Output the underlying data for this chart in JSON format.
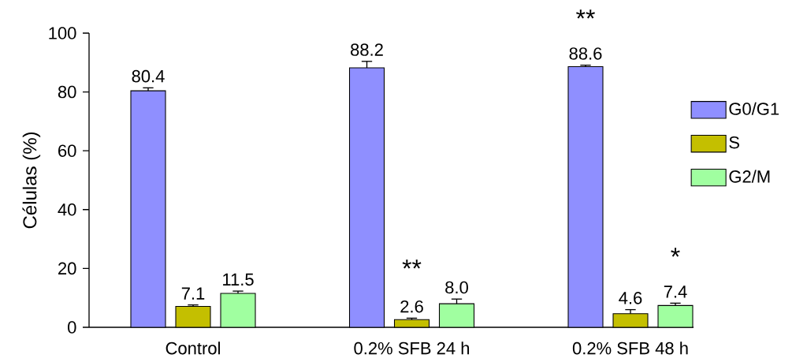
{
  "chart_data": {
    "type": "bar",
    "ylabel": "Células (%)",
    "categories": [
      "Control",
      "0.2% SFB 24 h",
      "0.2% SFB 48 h"
    ],
    "series": [
      {
        "name": "G0/G1",
        "color": "#8f8fff",
        "values": [
          80.4,
          88.2,
          88.6
        ],
        "errors": [
          1.0,
          2.2,
          0.5
        ],
        "value_labels": [
          "80.4",
          "88.2",
          "88.6"
        ]
      },
      {
        "name": "S",
        "color": "#c4bf00",
        "values": [
          7.1,
          2.6,
          4.6
        ],
        "errors": [
          0.5,
          0.5,
          1.4
        ],
        "value_labels": [
          "7.1",
          "2.6",
          "4.6"
        ]
      },
      {
        "name": "G2/M",
        "color": "#a0ffa0",
        "values": [
          11.5,
          8.0,
          7.4
        ],
        "errors": [
          0.8,
          1.6,
          0.8
        ],
        "value_labels": [
          "11.5",
          "8.0",
          "7.4"
        ]
      }
    ],
    "ylim": [
      0,
      100
    ],
    "yticks": [
      0,
      20,
      40,
      60,
      80,
      100
    ],
    "grid": false,
    "legend": "right",
    "annotations": [
      "**",
      "**",
      "*"
    ]
  }
}
